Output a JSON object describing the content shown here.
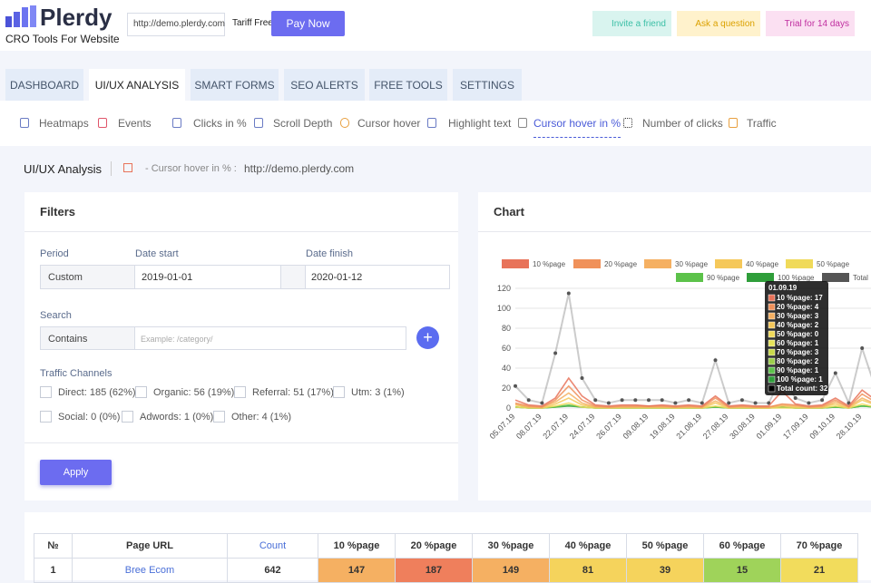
{
  "header": {
    "logo": "Plerdy",
    "tagline": "CRO Tools For Website",
    "site": "http://demo.plerdy.com",
    "plan": "Tariff Free",
    "pay": "Pay Now",
    "invite": "Invite a friend",
    "ask": "Ask a question",
    "trial": "Trial for 14 days"
  },
  "tabs": [
    "DASHBOARD",
    "UI/UX ANALYSIS",
    "SMART FORMS",
    "SEO ALERTS",
    "FREE TOOLS",
    "SETTINGS"
  ],
  "subnav": [
    "Heatmaps",
    "Events",
    "Clicks in %",
    "Scroll Depth",
    "Cursor hover",
    "Highlight text",
    "Cursor hover in %",
    "Number of clicks",
    "Traffic"
  ],
  "breadcrumb": {
    "title": "UI/UX Analysis",
    "section": "- Cursor hover in % :",
    "site": "http://demo.plerdy.com"
  },
  "filters": {
    "title": "Filters",
    "period_label": "Period",
    "period": "Custom",
    "date_start_label": "Date start",
    "date_start": "2019-01-01",
    "date_finish_label": "Date finish",
    "date_finish": "2020-01-12",
    "search_label": "Search",
    "search_mode": "Contains",
    "search_placeholder": "Example: /category/",
    "channels_label": "Traffic Channels",
    "channels": [
      "Direct: 185 (62%)",
      "Organic: 56 (19%)",
      "Referral: 51 (17%)",
      "Utm: 3 (1%)",
      "Social: 0 (0%)",
      "Adwords: 1 (0%)",
      "Other: 4 (1%)"
    ],
    "apply": "Apply"
  },
  "chart_panel": {
    "title": "Chart"
  },
  "chart_data": {
    "type": "line",
    "categories": [
      "05.07.19",
      null,
      "08.07.19",
      null,
      "22.07.19",
      null,
      "24.07.19",
      null,
      "26.07.19",
      null,
      "09.08.19",
      null,
      "19.08.19",
      null,
      "21.08.19",
      null,
      "27.08.19",
      null,
      "30.08.19",
      null,
      "01.09.19",
      null,
      "17.09.19",
      null,
      "09.10.19",
      null,
      "28.10.19",
      null
    ],
    "ylim": [
      0,
      120
    ],
    "yticks": [
      0,
      20,
      40,
      60,
      80,
      100,
      120
    ],
    "grid": true,
    "series": [
      {
        "name": "10 %page",
        "color": "#e8735a",
        "values": [
          8,
          3,
          2,
          10,
          30,
          12,
          3,
          2,
          3,
          3,
          2,
          3,
          2,
          3,
          2,
          12,
          2,
          3,
          2,
          2,
          17,
          4,
          2,
          3,
          10,
          2,
          18,
          8
        ]
      },
      {
        "name": "20 %page",
        "color": "#f0915a",
        "values": [
          5,
          2,
          1,
          8,
          22,
          8,
          2,
          1,
          2,
          2,
          2,
          2,
          1,
          2,
          1,
          10,
          1,
          2,
          1,
          1,
          4,
          3,
          1,
          2,
          8,
          1,
          14,
          6
        ]
      },
      {
        "name": "30 %page",
        "color": "#f5b062",
        "values": [
          4,
          1,
          1,
          6,
          15,
          5,
          1,
          1,
          1,
          1,
          1,
          1,
          1,
          1,
          1,
          7,
          1,
          1,
          1,
          1,
          3,
          2,
          1,
          1,
          6,
          1,
          10,
          4
        ]
      },
      {
        "name": "40 %page",
        "color": "#f5c85a",
        "values": [
          3,
          1,
          0,
          4,
          10,
          3,
          1,
          0,
          1,
          1,
          1,
          1,
          0,
          1,
          0,
          5,
          0,
          1,
          0,
          0,
          2,
          1,
          0,
          1,
          4,
          0,
          8,
          3
        ]
      },
      {
        "name": "50 %page",
        "color": "#f0da5a",
        "values": [
          1,
          0,
          0,
          2,
          5,
          1,
          0,
          0,
          0,
          0,
          0,
          0,
          0,
          0,
          0,
          2,
          0,
          0,
          0,
          0,
          0,
          0,
          0,
          0,
          2,
          0,
          4,
          1
        ]
      },
      {
        "name": "90 %page",
        "color": "#5cc24a",
        "values": [
          1,
          0,
          0,
          1,
          3,
          1,
          0,
          0,
          0,
          0,
          0,
          0,
          0,
          0,
          0,
          1,
          0,
          0,
          0,
          0,
          1,
          0,
          0,
          0,
          1,
          0,
          2,
          1
        ]
      },
      {
        "name": "100 %page",
        "color": "#2f9e3a",
        "values": [
          1,
          0,
          0,
          1,
          2,
          1,
          0,
          0,
          0,
          0,
          0,
          0,
          0,
          0,
          0,
          1,
          0,
          0,
          0,
          0,
          1,
          0,
          0,
          0,
          1,
          0,
          2,
          1
        ]
      },
      {
        "name": "Total",
        "color": "#555555",
        "values": [
          22,
          8,
          5,
          55,
          115,
          30,
          8,
          5,
          8,
          8,
          8,
          8,
          5,
          8,
          5,
          48,
          5,
          8,
          5,
          5,
          32,
          10,
          5,
          8,
          35,
          5,
          60,
          20
        ]
      }
    ],
    "tooltip": {
      "title": "01.09.19",
      "lines": [
        "10 %page: 17",
        "20 %page: 4",
        "30 %page: 3",
        "40 %page: 2",
        "50 %page: 0",
        "60 %page: 1",
        "70 %page: 3",
        "80 %page: 2",
        "90 %page: 1",
        "100 %page: 1"
      ],
      "total": "Total count: 32"
    }
  },
  "table": {
    "headers": [
      "№",
      "Page URL",
      "Count",
      "10 %page",
      "20 %page",
      "30 %page",
      "40 %page",
      "50 %page",
      "60 %page",
      "70 %page"
    ],
    "rows": [
      [
        1,
        "Bree Ecom",
        642,
        147,
        187,
        149,
        81,
        39,
        15,
        21
      ]
    ]
  }
}
